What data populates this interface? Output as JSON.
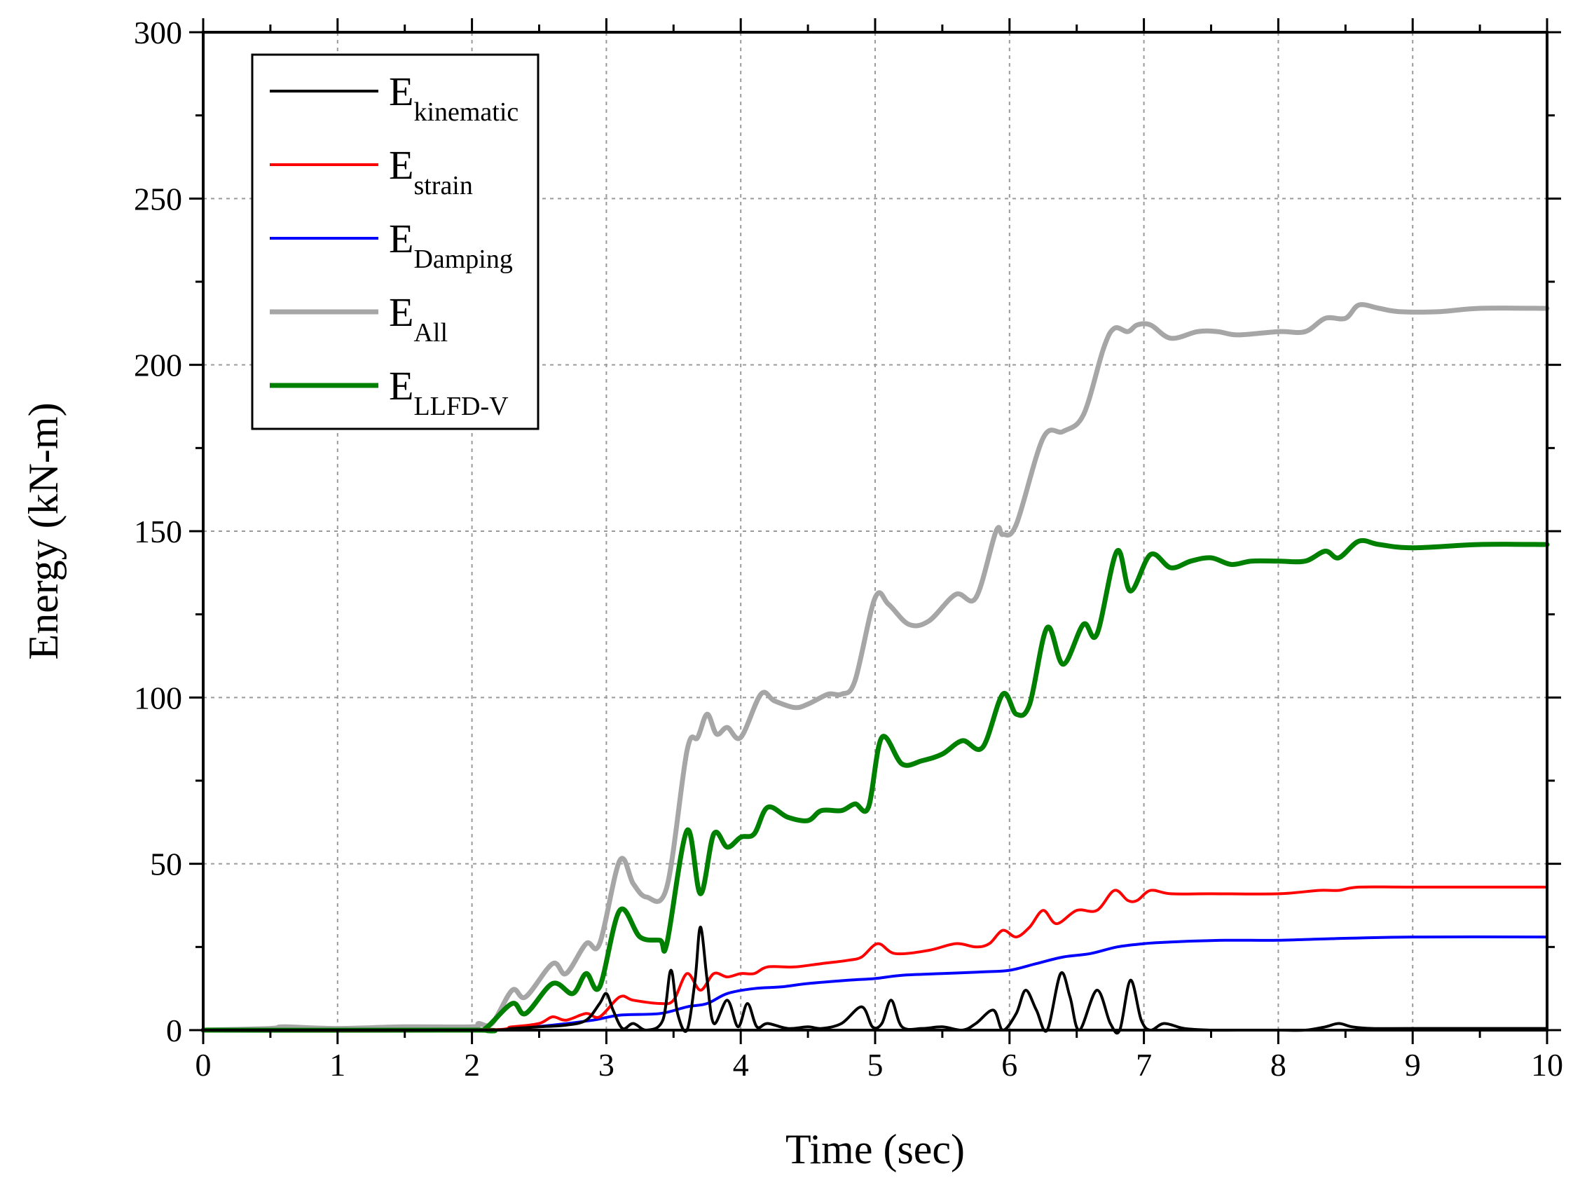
{
  "chart_data": {
    "type": "line",
    "xlabel": "Time (sec)",
    "ylabel": "Energy (kN-m)",
    "xlim": [
      0,
      10
    ],
    "ylim": [
      0,
      300
    ],
    "xticks": [
      "0",
      "1",
      "2",
      "3",
      "4",
      "5",
      "6",
      "7",
      "8",
      "9",
      "10"
    ],
    "yticks": [
      "0",
      "50",
      "100",
      "150",
      "200",
      "250",
      "300"
    ],
    "grid": true,
    "legend_position": "top-left",
    "series": [
      {
        "name": "E",
        "sub": "kinematic",
        "color": "#000000",
        "points": [
          [
            0,
            0
          ],
          [
            2.0,
            0
          ],
          [
            2.3,
            0.5
          ],
          [
            2.5,
            1
          ],
          [
            2.7,
            1.5
          ],
          [
            2.85,
            3
          ],
          [
            2.95,
            8
          ],
          [
            3.0,
            11
          ],
          [
            3.05,
            6
          ],
          [
            3.12,
            0.5
          ],
          [
            3.2,
            2
          ],
          [
            3.3,
            0
          ],
          [
            3.42,
            3
          ],
          [
            3.48,
            18
          ],
          [
            3.53,
            5
          ],
          [
            3.6,
            0
          ],
          [
            3.66,
            15
          ],
          [
            3.7,
            31
          ],
          [
            3.75,
            15
          ],
          [
            3.8,
            2
          ],
          [
            3.9,
            9
          ],
          [
            3.98,
            1
          ],
          [
            4.05,
            8
          ],
          [
            4.12,
            1
          ],
          [
            4.2,
            2
          ],
          [
            4.35,
            0.5
          ],
          [
            4.5,
            1
          ],
          [
            4.6,
            0.5
          ],
          [
            4.75,
            2
          ],
          [
            4.9,
            7
          ],
          [
            4.98,
            1
          ],
          [
            5.05,
            2
          ],
          [
            5.12,
            9
          ],
          [
            5.2,
            1
          ],
          [
            5.35,
            0.5
          ],
          [
            5.5,
            1
          ],
          [
            5.65,
            0
          ],
          [
            5.75,
            2
          ],
          [
            5.88,
            6
          ],
          [
            5.95,
            0
          ],
          [
            6.05,
            5
          ],
          [
            6.12,
            12
          ],
          [
            6.2,
            6
          ],
          [
            6.28,
            0
          ],
          [
            6.38,
            17
          ],
          [
            6.45,
            10
          ],
          [
            6.52,
            0
          ],
          [
            6.65,
            12
          ],
          [
            6.75,
            2
          ],
          [
            6.82,
            0
          ],
          [
            6.9,
            15
          ],
          [
            6.98,
            3
          ],
          [
            7.05,
            0
          ],
          [
            7.15,
            2
          ],
          [
            7.3,
            0.5
          ],
          [
            7.5,
            0
          ],
          [
            7.7,
            0
          ],
          [
            8.0,
            0
          ],
          [
            8.2,
            0
          ],
          [
            8.35,
            1
          ],
          [
            8.45,
            2
          ],
          [
            8.55,
            1
          ],
          [
            8.7,
            0.5
          ],
          [
            9.0,
            0.5
          ],
          [
            10,
            0.5
          ]
        ]
      },
      {
        "name": "E",
        "sub": "strain",
        "color": "#ff0000",
        "points": [
          [
            0,
            0
          ],
          [
            2.0,
            0
          ],
          [
            2.3,
            1
          ],
          [
            2.5,
            2
          ],
          [
            2.6,
            4
          ],
          [
            2.7,
            3
          ],
          [
            2.85,
            5
          ],
          [
            2.95,
            4
          ],
          [
            3.1,
            10
          ],
          [
            3.2,
            9
          ],
          [
            3.4,
            8
          ],
          [
            3.5,
            9
          ],
          [
            3.6,
            17
          ],
          [
            3.7,
            12
          ],
          [
            3.8,
            17
          ],
          [
            3.9,
            16
          ],
          [
            4.0,
            17
          ],
          [
            4.1,
            17
          ],
          [
            4.2,
            19
          ],
          [
            4.4,
            19
          ],
          [
            4.6,
            20
          ],
          [
            4.8,
            21
          ],
          [
            4.9,
            22
          ],
          [
            5.02,
            26
          ],
          [
            5.15,
            23
          ],
          [
            5.4,
            24
          ],
          [
            5.6,
            26
          ],
          [
            5.75,
            25
          ],
          [
            5.85,
            26
          ],
          [
            5.95,
            30
          ],
          [
            6.05,
            28
          ],
          [
            6.15,
            31
          ],
          [
            6.25,
            36
          ],
          [
            6.35,
            32
          ],
          [
            6.5,
            36
          ],
          [
            6.65,
            36
          ],
          [
            6.78,
            42
          ],
          [
            6.88,
            39
          ],
          [
            6.95,
            39
          ],
          [
            7.05,
            42
          ],
          [
            7.2,
            41
          ],
          [
            7.5,
            41
          ],
          [
            8.0,
            41
          ],
          [
            8.3,
            42
          ],
          [
            8.45,
            42
          ],
          [
            8.6,
            43
          ],
          [
            9.0,
            43
          ],
          [
            10,
            43
          ]
        ]
      },
      {
        "name": "E",
        "sub": "Damping",
        "color": "#0000ff",
        "points": [
          [
            0,
            0
          ],
          [
            2.0,
            0
          ],
          [
            2.3,
            0.5
          ],
          [
            2.6,
            1.5
          ],
          [
            2.9,
            3
          ],
          [
            3.1,
            4.5
          ],
          [
            3.4,
            5
          ],
          [
            3.6,
            7
          ],
          [
            3.75,
            8
          ],
          [
            3.9,
            11
          ],
          [
            4.1,
            12.5
          ],
          [
            4.3,
            13
          ],
          [
            4.5,
            14
          ],
          [
            4.8,
            15
          ],
          [
            5.0,
            15.5
          ],
          [
            5.2,
            16.5
          ],
          [
            5.5,
            17
          ],
          [
            5.8,
            17.5
          ],
          [
            6.0,
            18
          ],
          [
            6.2,
            20
          ],
          [
            6.4,
            22
          ],
          [
            6.6,
            23
          ],
          [
            6.8,
            25
          ],
          [
            7.0,
            26
          ],
          [
            7.2,
            26.5
          ],
          [
            7.6,
            27
          ],
          [
            8.0,
            27
          ],
          [
            8.4,
            27.5
          ],
          [
            9.0,
            28
          ],
          [
            10,
            28
          ]
        ]
      },
      {
        "name": "E",
        "sub": "All",
        "color": "#a6a6a6",
        "points": [
          [
            0,
            0
          ],
          [
            0.5,
            0.5
          ],
          [
            0.6,
            1
          ],
          [
            1.0,
            0.5
          ],
          [
            1.5,
            1
          ],
          [
            2.0,
            1
          ],
          [
            2.05,
            2
          ],
          [
            2.15,
            2
          ],
          [
            2.3,
            12
          ],
          [
            2.4,
            10
          ],
          [
            2.6,
            20
          ],
          [
            2.7,
            17
          ],
          [
            2.85,
            26
          ],
          [
            2.95,
            26
          ],
          [
            3.1,
            51
          ],
          [
            3.2,
            44
          ],
          [
            3.3,
            40
          ],
          [
            3.45,
            43
          ],
          [
            3.6,
            84
          ],
          [
            3.68,
            88
          ],
          [
            3.75,
            95
          ],
          [
            3.82,
            89
          ],
          [
            3.9,
            91
          ],
          [
            4.0,
            88
          ],
          [
            4.15,
            101
          ],
          [
            4.25,
            99
          ],
          [
            4.4,
            97
          ],
          [
            4.5,
            98
          ],
          [
            4.65,
            101
          ],
          [
            4.75,
            101
          ],
          [
            4.85,
            105
          ],
          [
            5.0,
            130
          ],
          [
            5.1,
            128
          ],
          [
            5.25,
            122
          ],
          [
            5.4,
            123
          ],
          [
            5.6,
            131
          ],
          [
            5.75,
            130
          ],
          [
            5.9,
            150
          ],
          [
            5.95,
            149
          ],
          [
            6.05,
            152
          ],
          [
            6.25,
            178
          ],
          [
            6.4,
            180
          ],
          [
            6.55,
            185
          ],
          [
            6.7,
            205
          ],
          [
            6.78,
            211
          ],
          [
            6.88,
            210
          ],
          [
            6.95,
            212
          ],
          [
            7.05,
            212
          ],
          [
            7.2,
            208
          ],
          [
            7.4,
            210
          ],
          [
            7.55,
            210
          ],
          [
            7.7,
            209
          ],
          [
            8.0,
            210
          ],
          [
            8.2,
            210
          ],
          [
            8.35,
            214
          ],
          [
            8.5,
            214
          ],
          [
            8.6,
            218
          ],
          [
            8.75,
            217
          ],
          [
            8.9,
            216
          ],
          [
            9.2,
            216
          ],
          [
            9.5,
            217
          ],
          [
            10,
            217
          ]
        ]
      },
      {
        "name": "E",
        "sub": "LLFD-V",
        "color": "#008000",
        "points": [
          [
            0,
            0
          ],
          [
            2.0,
            0
          ],
          [
            2.1,
            0.5
          ],
          [
            2.3,
            8
          ],
          [
            2.4,
            5
          ],
          [
            2.6,
            14
          ],
          [
            2.75,
            11
          ],
          [
            2.85,
            17
          ],
          [
            2.95,
            13
          ],
          [
            3.1,
            36
          ],
          [
            3.25,
            28
          ],
          [
            3.4,
            27
          ],
          [
            3.45,
            26
          ],
          [
            3.6,
            60
          ],
          [
            3.7,
            41
          ],
          [
            3.8,
            59
          ],
          [
            3.9,
            55
          ],
          [
            4.0,
            58
          ],
          [
            4.1,
            59
          ],
          [
            4.2,
            67
          ],
          [
            4.35,
            64
          ],
          [
            4.5,
            63
          ],
          [
            4.6,
            66
          ],
          [
            4.75,
            66
          ],
          [
            4.85,
            68
          ],
          [
            4.95,
            67
          ],
          [
            5.05,
            88
          ],
          [
            5.2,
            80
          ],
          [
            5.35,
            81
          ],
          [
            5.5,
            83
          ],
          [
            5.65,
            87
          ],
          [
            5.8,
            85
          ],
          [
            5.95,
            101
          ],
          [
            6.05,
            95
          ],
          [
            6.15,
            98
          ],
          [
            6.28,
            121
          ],
          [
            6.4,
            110
          ],
          [
            6.55,
            122
          ],
          [
            6.65,
            119
          ],
          [
            6.8,
            144
          ],
          [
            6.9,
            132
          ],
          [
            7.05,
            143
          ],
          [
            7.2,
            139
          ],
          [
            7.35,
            141
          ],
          [
            7.5,
            142
          ],
          [
            7.65,
            140
          ],
          [
            7.8,
            141
          ],
          [
            8.0,
            141
          ],
          [
            8.2,
            141
          ],
          [
            8.35,
            144
          ],
          [
            8.45,
            142
          ],
          [
            8.6,
            147
          ],
          [
            8.75,
            146
          ],
          [
            9.0,
            145
          ],
          [
            9.5,
            146
          ],
          [
            10,
            146
          ]
        ]
      }
    ]
  }
}
